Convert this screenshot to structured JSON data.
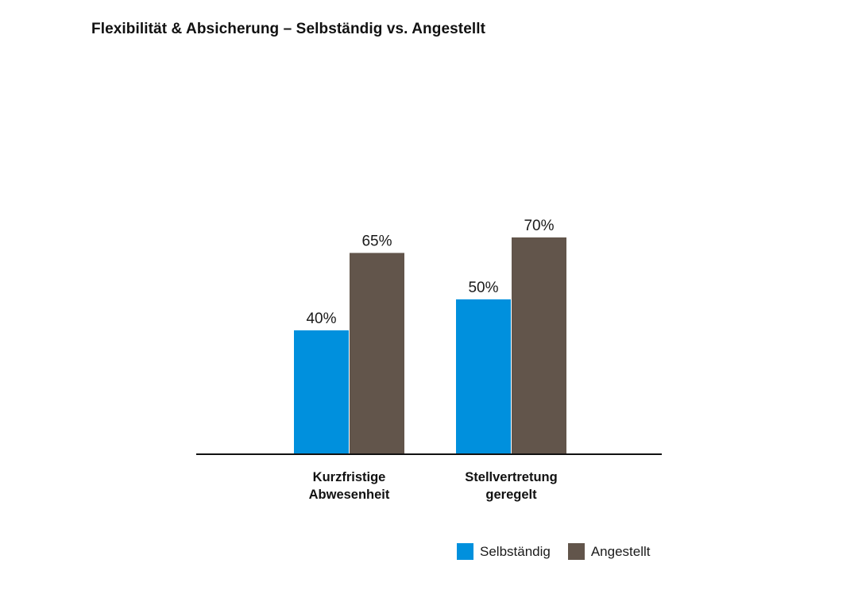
{
  "title": "Flexibilität & Absicherung – Selbständig vs. Angestellt",
  "colors": {
    "selbstaendig": "#0090dd",
    "angestellt": "#62554b"
  },
  "chart_data": {
    "type": "bar",
    "title": "Flexibilität & Absicherung – Selbständig vs. Angestellt",
    "categories": [
      [
        "Kurzfristige",
        "Abwesenheit"
      ],
      [
        "Stellvertretung",
        "geregelt"
      ]
    ],
    "series": [
      {
        "name": "Selbständig",
        "values": [
          40,
          50
        ],
        "labels": [
          "40%",
          "50%"
        ]
      },
      {
        "name": "Angestellt",
        "values": [
          65,
          70
        ],
        "labels": [
          "65%",
          "70%"
        ]
      }
    ],
    "unit": "%",
    "ylim": [
      0,
      100
    ],
    "grid": false,
    "legend": "bottom-right"
  }
}
